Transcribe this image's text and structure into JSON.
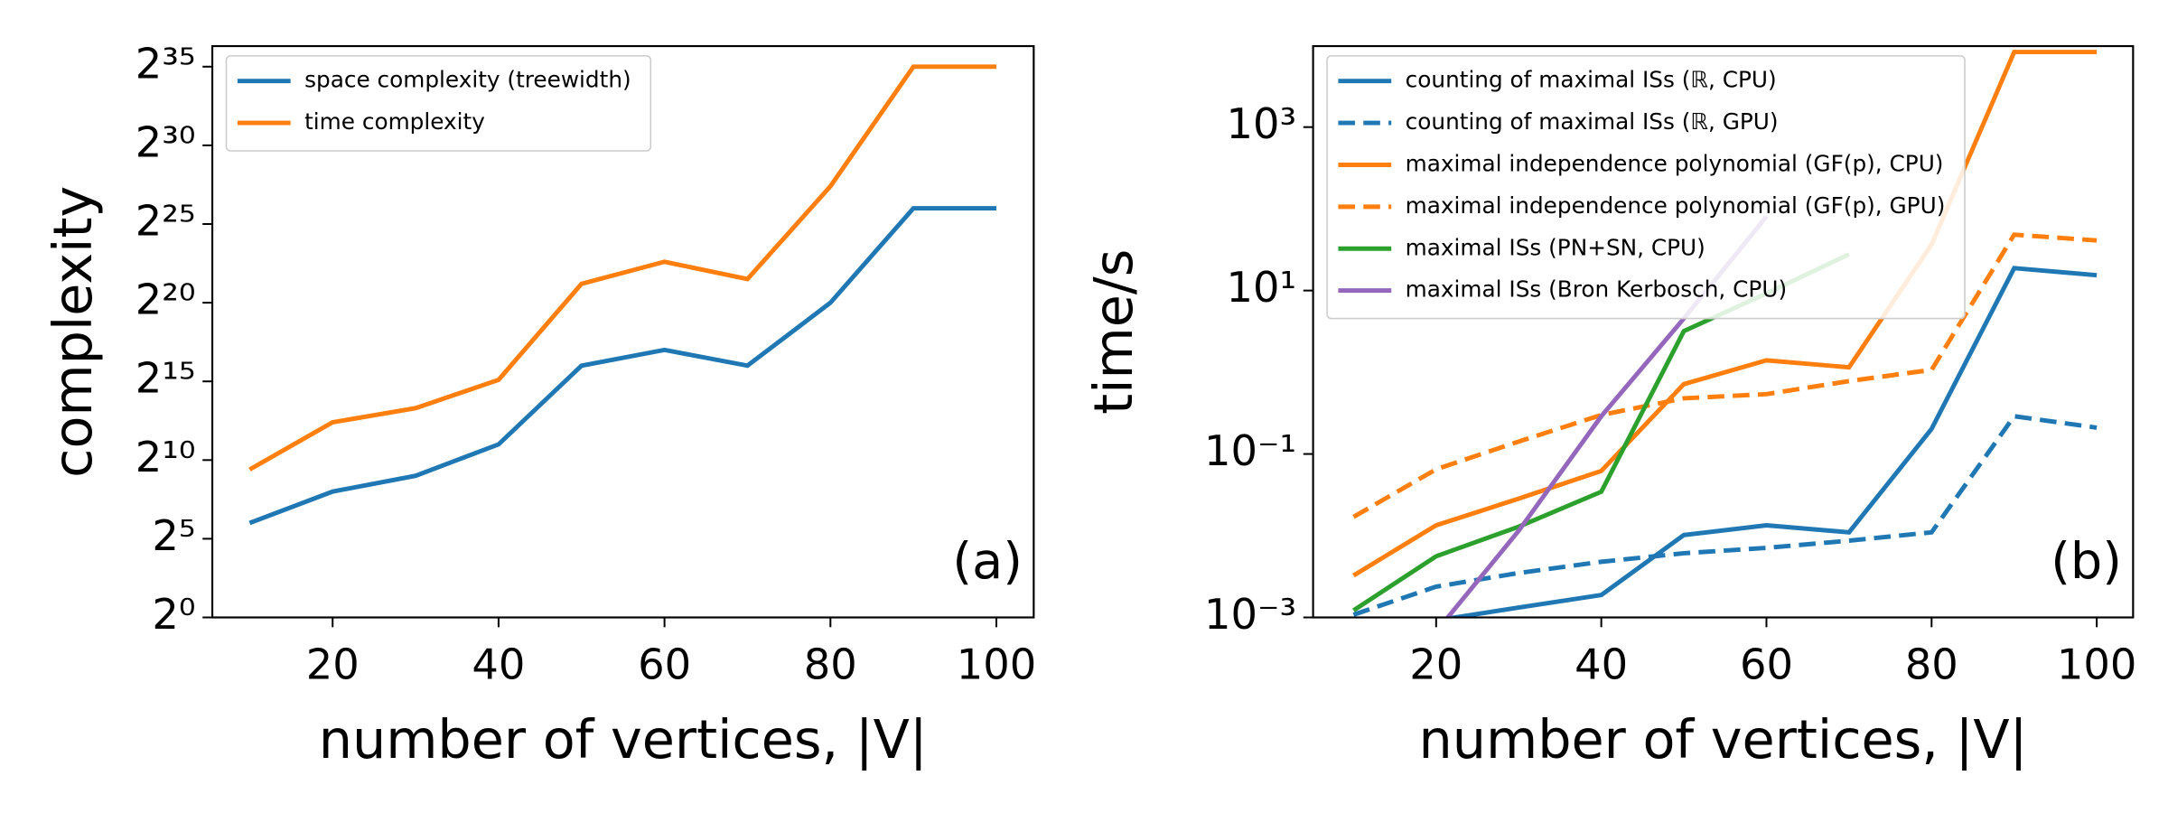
{
  "chart_data": [
    {
      "type": "line",
      "xlabel": "number of vertices, |V|",
      "ylabel": "complexity",
      "annotation": "(a)",
      "yscale": "log",
      "logbase": 2,
      "legend": "upper left",
      "x": [
        10,
        20,
        30,
        40,
        50,
        60,
        70,
        80,
        90,
        100
      ],
      "xlim": [
        5.5,
        104.5
      ],
      "xticks": [
        20,
        40,
        60,
        80,
        100
      ],
      "ylim": [
        1,
        85000000000
      ],
      "yticks": [
        {
          "value": 1,
          "label": "2⁰"
        },
        {
          "value": 32,
          "label": "2⁵"
        },
        {
          "value": 1024,
          "label": "2¹⁰"
        },
        {
          "value": 32768,
          "label": "2¹⁵"
        },
        {
          "value": 1048576,
          "label": "2²⁰"
        },
        {
          "value": 33554432,
          "label": "2²⁵"
        },
        {
          "value": 1073741824,
          "label": "2³⁰"
        },
        {
          "value": 34359738368,
          "label": "2³⁵"
        }
      ],
      "series": [
        {
          "name": "space complexity (treewidth)",
          "color": "#1f77b4",
          "dash": "solid",
          "values": [
            64,
            256,
            512,
            2048,
            65536,
            131072,
            65536,
            1048576,
            67108864,
            67108864
          ]
        },
        {
          "name": "time complexity",
          "color": "#ff7f0e",
          "dash": "solid",
          "values": [
            676,
            5405,
            10085,
            35120,
            2410000,
            6360000,
            2970000,
            177000000,
            34359738368,
            34359738368
          ]
        }
      ]
    },
    {
      "type": "line",
      "xlabel": "number of vertices, |V|",
      "ylabel": "time/s",
      "annotation": "(b)",
      "yscale": "log",
      "logbase": 10,
      "legend": "upper left",
      "x": [
        10,
        20,
        30,
        40,
        50,
        60,
        70,
        80,
        90,
        100
      ],
      "xlim": [
        5.1,
        104.4
      ],
      "xticks": [
        20,
        40,
        60,
        80,
        100
      ],
      "ylim": [
        0.001,
        9800
      ],
      "yticks": [
        {
          "value": 0.001,
          "label": "10⁻³"
        },
        {
          "value": 0.1,
          "label": "10⁻¹"
        },
        {
          "value": 10,
          "label": "10¹"
        },
        {
          "value": 1000,
          "label": "10³"
        }
      ],
      "series": [
        {
          "name": "counting of maximal ISs (ℝ, CPU)",
          "color": "#1f77b4",
          "dash": "solid",
          "values": [
            0.00076,
            0.00092,
            0.00132,
            0.00188,
            0.0102,
            0.0134,
            0.011,
            0.203,
            18.8,
            15.4
          ]
        },
        {
          "name": "counting of maximal ISs (ℝ, GPU)",
          "color": "#1f77b4",
          "dash": "dashed",
          "values": [
            0.00108,
            0.00238,
            0.0035,
            0.0048,
            0.0061,
            0.0071,
            0.0087,
            0.011,
            0.29,
            0.21
          ]
        },
        {
          "name": "maximal independence polynomial (GF(p), CPU)",
          "color": "#ff7f0e",
          "dash": "solid",
          "values": [
            0.00326,
            0.0134,
            0.0284,
            0.062,
            0.716,
            1.4,
            1.15,
            36.6,
            8300,
            8300
          ]
        },
        {
          "name": "maximal independence polynomial (GF(p), GPU)",
          "color": "#ff7f0e",
          "dash": "dashed",
          "values": [
            0.017,
            0.065,
            0.142,
            0.3,
            0.48,
            0.54,
            0.78,
            1.07,
            48.3,
            41
          ]
        },
        {
          "name": "maximal ISs (PN+SN, CPU)",
          "color": "#2ca02c",
          "dash": "solid",
          "values": [
            0.00122,
            0.0056,
            0.0129,
            0.0345,
            3.19,
            9.2,
            27.8,
            null,
            null,
            null
          ]
        },
        {
          "name": "maximal ISs (Bron Kerbosch, CPU)",
          "color": "#9467bd",
          "dash": "solid",
          "values": [
            null,
            0.00067,
            0.0115,
            0.29,
            4.55,
            80.5,
            null,
            null,
            null,
            null
          ]
        }
      ]
    }
  ]
}
